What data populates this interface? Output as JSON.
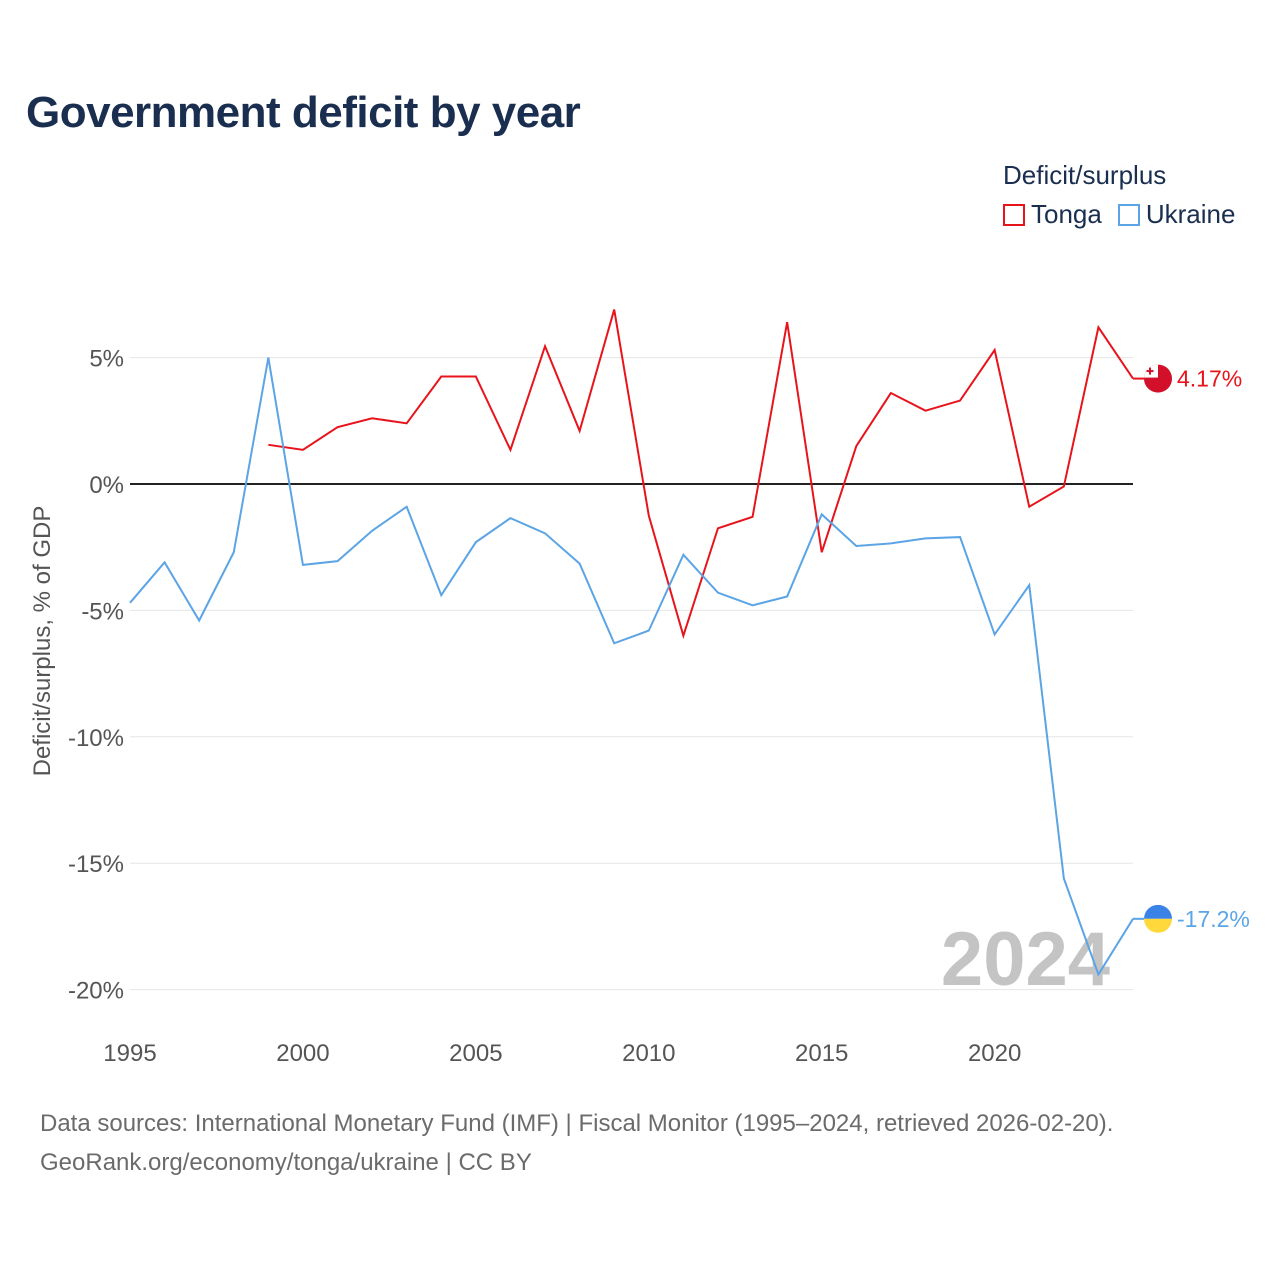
{
  "title": "Government deficit by year",
  "legend": {
    "title": "Deficit/surplus",
    "items": [
      {
        "label": "Tonga",
        "color": "#e8141c"
      },
      {
        "label": "Ukraine",
        "color": "#5ba4e5"
      }
    ]
  },
  "footer": {
    "line1": "Data sources: International Monetary Fund (IMF) | Fiscal Monitor (1995–2024, retrieved 2026-02-20).",
    "line2": "GeoRank.org/economy/tonga/ukraine | CC BY"
  },
  "chart_data": {
    "type": "line",
    "title": "Government deficit by year",
    "ylabel": "Deficit/surplus, % of GDP",
    "xlabel": "",
    "xlim": [
      1995,
      2024
    ],
    "ylim": [
      -20,
      7
    ],
    "yticks": [
      5,
      0,
      -5,
      -10,
      -15,
      -20
    ],
    "ytick_labels": [
      "5%",
      "0%",
      "-5%",
      "-10%",
      "-15%",
      "-20%"
    ],
    "xticks": [
      1995,
      2000,
      2005,
      2010,
      2015,
      2020
    ],
    "xtick_labels": [
      "1995",
      "2000",
      "2005",
      "2010",
      "2015",
      "2020"
    ],
    "year_watermark": "2024",
    "series": [
      {
        "name": "Tonga",
        "color": "#e8141c",
        "x": [
          1999,
          2000,
          2001,
          2002,
          2003,
          2004,
          2005,
          2006,
          2007,
          2008,
          2009,
          2010,
          2011,
          2012,
          2013,
          2014,
          2015,
          2016,
          2017,
          2018,
          2019,
          2020,
          2021,
          2022,
          2023,
          2024
        ],
        "values": [
          1.55,
          1.35,
          2.25,
          2.6,
          2.4,
          4.25,
          4.25,
          1.35,
          5.45,
          2.1,
          6.9,
          -1.25,
          -6.0,
          -1.75,
          -1.3,
          6.4,
          -2.7,
          1.5,
          3.6,
          2.9,
          3.3,
          5.3,
          -0.9,
          -0.1,
          6.2,
          4.17
        ],
        "end_label": "4.17%",
        "flag": "tonga-flag-icon"
      },
      {
        "name": "Ukraine",
        "color": "#5ba4e5",
        "x": [
          1995,
          1996,
          1997,
          1998,
          1999,
          2000,
          2001,
          2002,
          2003,
          2004,
          2005,
          2006,
          2007,
          2008,
          2009,
          2010,
          2011,
          2012,
          2013,
          2014,
          2015,
          2016,
          2017,
          2018,
          2019,
          2020,
          2021,
          2022,
          2023,
          2024
        ],
        "values": [
          -4.7,
          -3.1,
          -5.4,
          -2.7,
          5.0,
          -3.2,
          -3.05,
          -1.85,
          -0.9,
          -4.4,
          -2.3,
          -1.35,
          -1.95,
          -3.15,
          -6.3,
          -5.8,
          -2.8,
          -4.3,
          -4.8,
          -4.45,
          -1.2,
          -2.45,
          -2.35,
          -2.15,
          -2.1,
          -5.95,
          -4.0,
          -15.6,
          -19.4,
          -17.2
        ],
        "end_label": "-17.2%",
        "flag": "ukraine-flag-icon"
      }
    ]
  }
}
